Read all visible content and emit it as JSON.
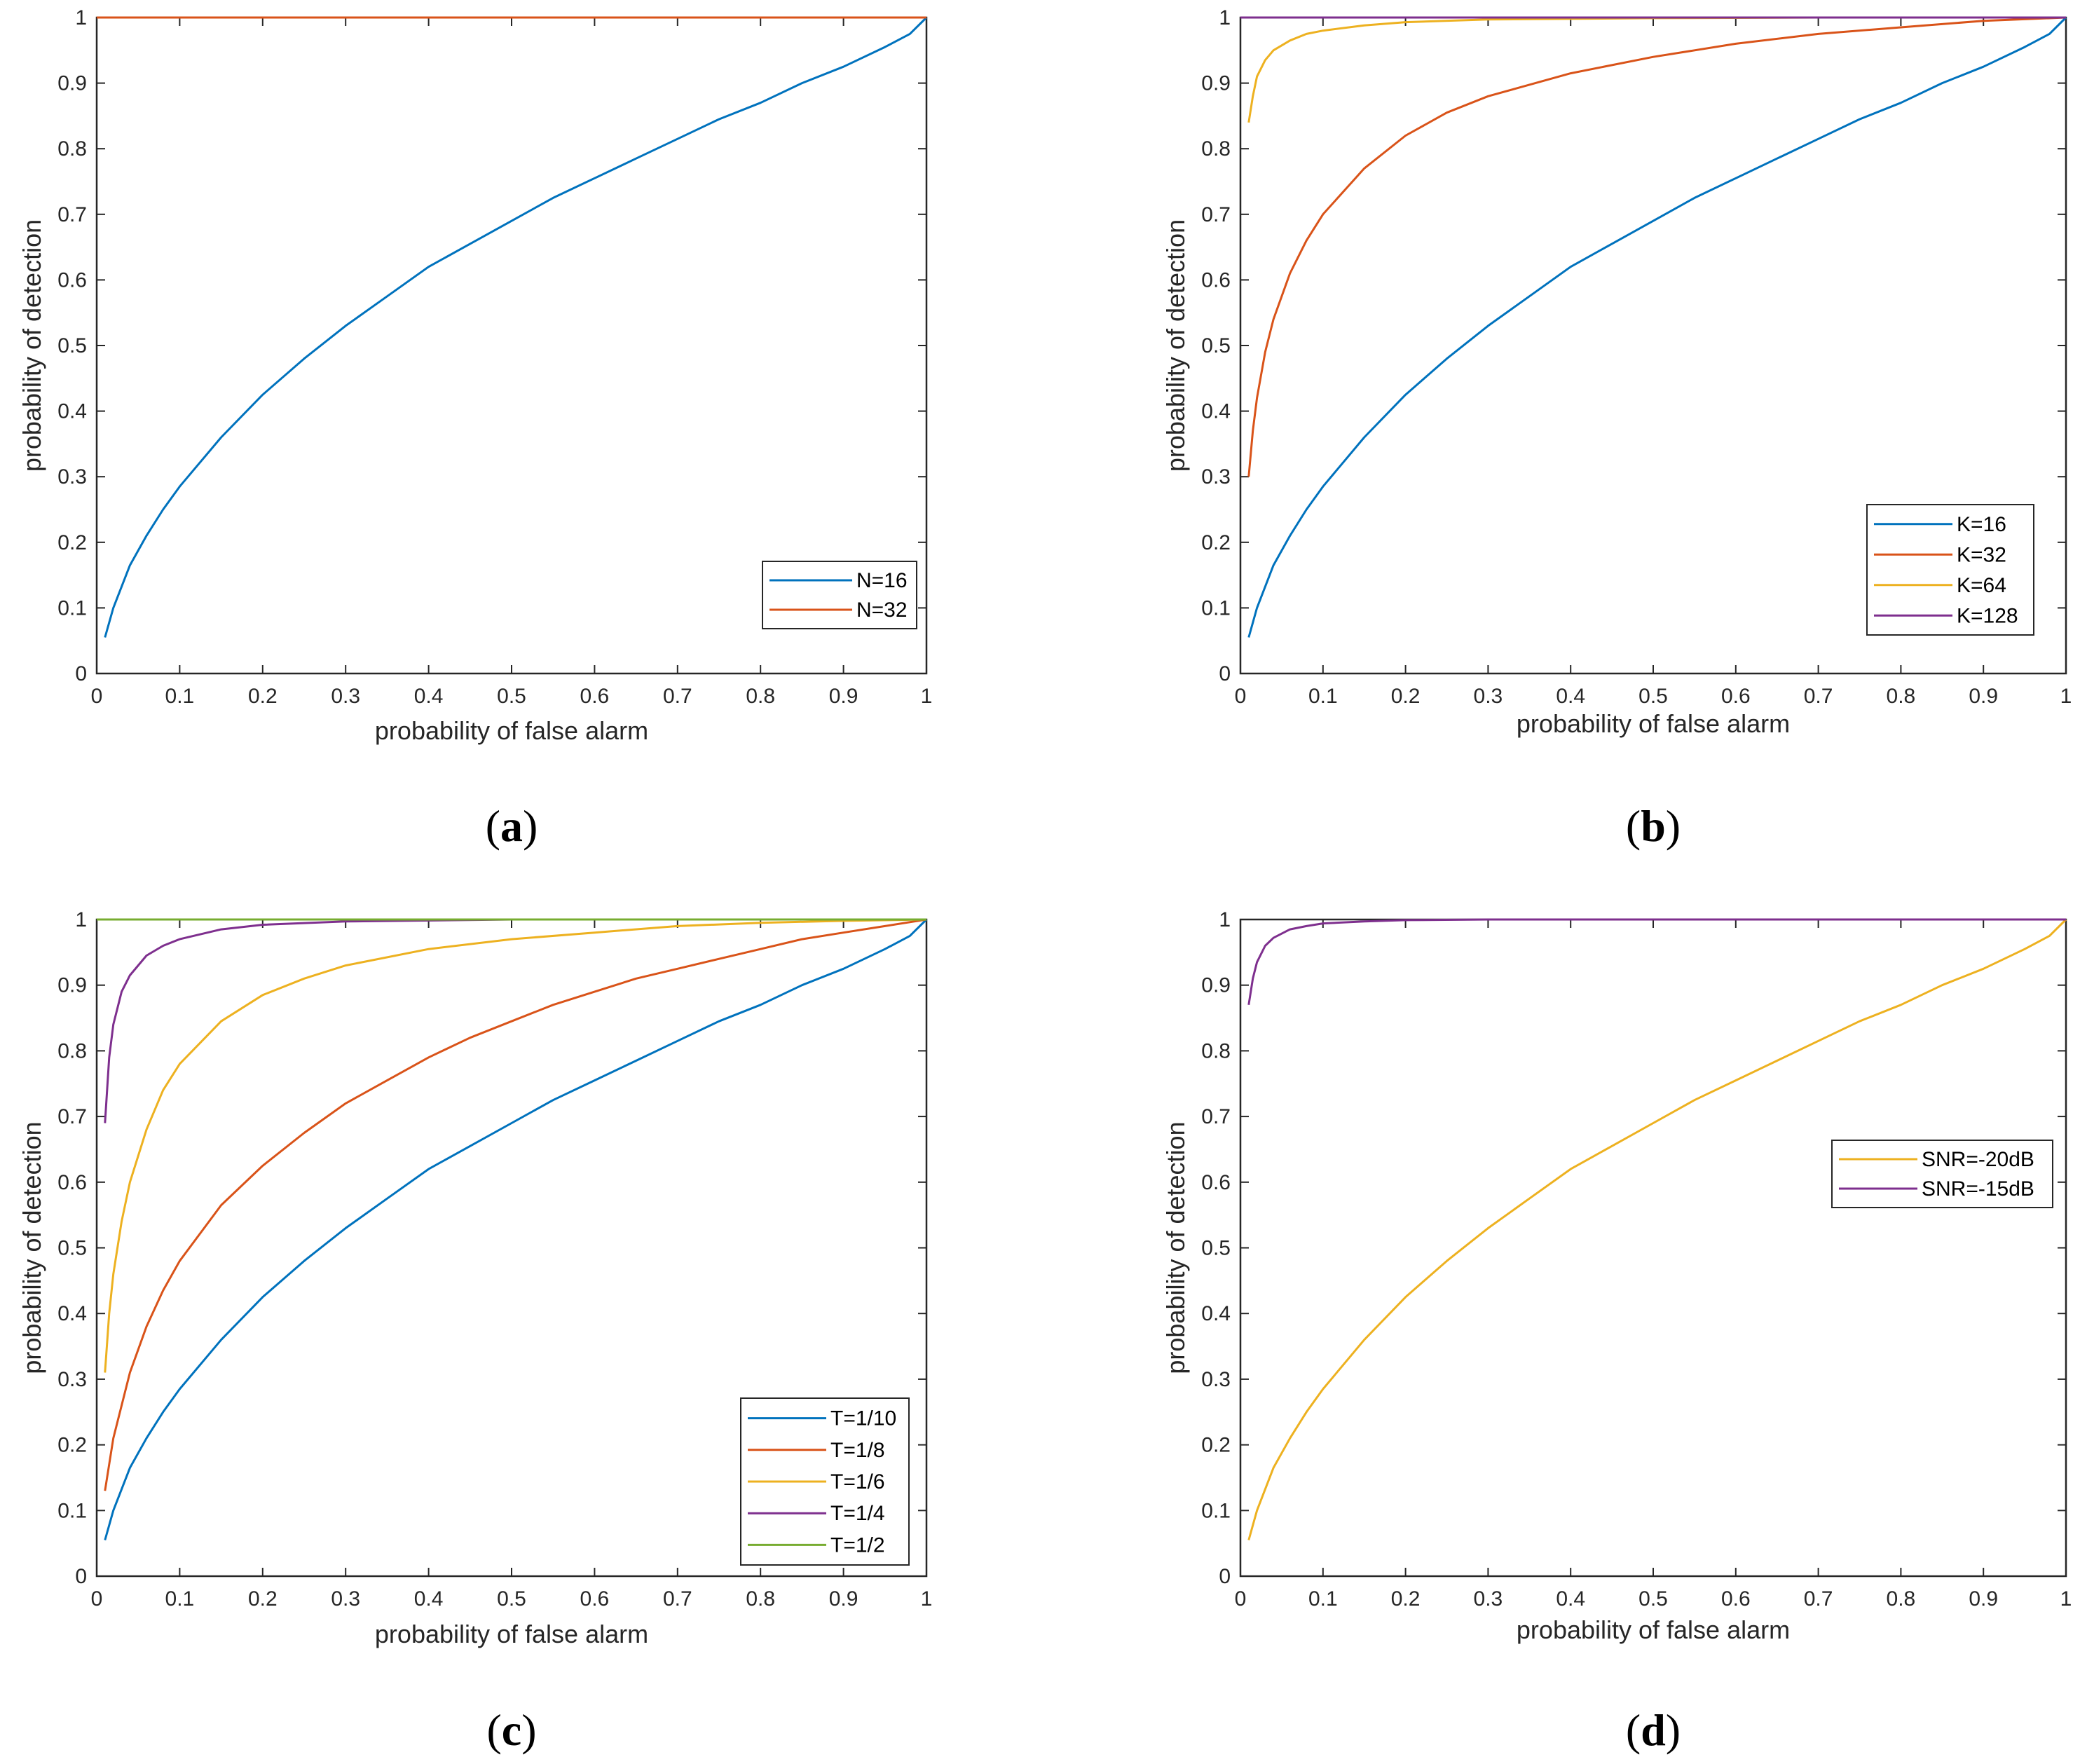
{
  "chart_data": [
    {
      "type": "line",
      "caption": "a",
      "xlabel": "probability of false alarm",
      "ylabel": "probability of detection",
      "xlim": [
        0,
        1
      ],
      "ylim": [
        0,
        1
      ],
      "xticks": [
        "0",
        "0.1",
        "0.2",
        "0.3",
        "0.4",
        "0.5",
        "0.6",
        "0.7",
        "0.8",
        "0.9",
        "1"
      ],
      "yticks": [
        "0",
        "0.1",
        "0.2",
        "0.3",
        "0.4",
        "0.5",
        "0.6",
        "0.7",
        "0.8",
        "0.9",
        "1"
      ],
      "legend_position": "bottom-right",
      "series": [
        {
          "name": "N=16",
          "color": "#0072BD",
          "x": [
            0.01,
            0.02,
            0.04,
            0.06,
            0.08,
            0.1,
            0.15,
            0.2,
            0.25,
            0.3,
            0.35,
            0.4,
            0.45,
            0.5,
            0.55,
            0.6,
            0.65,
            0.7,
            0.75,
            0.8,
            0.85,
            0.9,
            0.95,
            0.98,
            1
          ],
          "y": [
            0.055,
            0.1,
            0.165,
            0.21,
            0.25,
            0.285,
            0.36,
            0.425,
            0.48,
            0.53,
            0.575,
            0.62,
            0.655,
            0.69,
            0.725,
            0.755,
            0.785,
            0.815,
            0.845,
            0.87,
            0.9,
            0.925,
            0.955,
            0.975,
            1
          ]
        },
        {
          "name": "N=32",
          "color": "#D95319",
          "x": [
            0,
            0.01,
            0.5,
            1
          ],
          "y": [
            1,
            1,
            1,
            1
          ]
        }
      ]
    },
    {
      "type": "line",
      "caption": "b",
      "xlabel": "probability of false alarm",
      "ylabel": "probability of detection",
      "xlim": [
        0,
        1
      ],
      "ylim": [
        0,
        1
      ],
      "xticks": [
        "0",
        "0.1",
        "0.2",
        "0.3",
        "0.4",
        "0.5",
        "0.6",
        "0.7",
        "0.8",
        "0.9",
        "1"
      ],
      "yticks": [
        "0",
        "0.1",
        "0.2",
        "0.3",
        "0.4",
        "0.5",
        "0.6",
        "0.7",
        "0.8",
        "0.9",
        "1"
      ],
      "legend_position": "bottom-right",
      "series": [
        {
          "name": "K=16",
          "color": "#0072BD",
          "x": [
            0.01,
            0.02,
            0.04,
            0.06,
            0.08,
            0.1,
            0.15,
            0.2,
            0.25,
            0.3,
            0.35,
            0.4,
            0.45,
            0.5,
            0.55,
            0.6,
            0.65,
            0.7,
            0.75,
            0.8,
            0.85,
            0.9,
            0.95,
            0.98,
            1
          ],
          "y": [
            0.055,
            0.1,
            0.165,
            0.21,
            0.25,
            0.285,
            0.36,
            0.425,
            0.48,
            0.53,
            0.575,
            0.62,
            0.655,
            0.69,
            0.725,
            0.755,
            0.785,
            0.815,
            0.845,
            0.87,
            0.9,
            0.925,
            0.955,
            0.975,
            1
          ]
        },
        {
          "name": "K=32",
          "color": "#D95319",
          "x": [
            0.01,
            0.015,
            0.02,
            0.03,
            0.04,
            0.06,
            0.08,
            0.1,
            0.15,
            0.2,
            0.25,
            0.3,
            0.4,
            0.5,
            0.6,
            0.7,
            0.8,
            0.9,
            1
          ],
          "y": [
            0.3,
            0.37,
            0.42,
            0.49,
            0.54,
            0.61,
            0.66,
            0.7,
            0.77,
            0.82,
            0.855,
            0.88,
            0.915,
            0.94,
            0.96,
            0.975,
            0.985,
            0.995,
            1
          ]
        },
        {
          "name": "K=64",
          "color": "#EDB120",
          "x": [
            0.01,
            0.015,
            0.02,
            0.03,
            0.04,
            0.06,
            0.08,
            0.1,
            0.15,
            0.2,
            0.3,
            0.5,
            0.7,
            1
          ],
          "y": [
            0.84,
            0.88,
            0.91,
            0.935,
            0.95,
            0.965,
            0.975,
            0.98,
            0.988,
            0.993,
            0.997,
            0.999,
            1,
            1
          ]
        },
        {
          "name": "K=128",
          "color": "#7E2F8E",
          "x": [
            0,
            0.01,
            0.5,
            1
          ],
          "y": [
            1,
            1,
            1,
            1
          ]
        }
      ]
    },
    {
      "type": "line",
      "caption": "c",
      "xlabel": "probability of false alarm",
      "ylabel": "probability of detection",
      "xlim": [
        0,
        1
      ],
      "ylim": [
        0,
        1
      ],
      "xticks": [
        "0",
        "0.1",
        "0.2",
        "0.3",
        "0.4",
        "0.5",
        "0.6",
        "0.7",
        "0.8",
        "0.9",
        "1"
      ],
      "yticks": [
        "0",
        "0.1",
        "0.2",
        "0.3",
        "0.4",
        "0.5",
        "0.6",
        "0.7",
        "0.8",
        "0.9",
        "1"
      ],
      "legend_position": "bottom-right",
      "series": [
        {
          "name": "T=1/10",
          "color": "#0072BD",
          "x": [
            0.01,
            0.02,
            0.04,
            0.06,
            0.08,
            0.1,
            0.15,
            0.2,
            0.25,
            0.3,
            0.35,
            0.4,
            0.45,
            0.5,
            0.55,
            0.6,
            0.65,
            0.7,
            0.75,
            0.8,
            0.85,
            0.9,
            0.95,
            0.98,
            1
          ],
          "y": [
            0.055,
            0.1,
            0.165,
            0.21,
            0.25,
            0.285,
            0.36,
            0.425,
            0.48,
            0.53,
            0.575,
            0.62,
            0.655,
            0.69,
            0.725,
            0.755,
            0.785,
            0.815,
            0.845,
            0.87,
            0.9,
            0.925,
            0.955,
            0.975,
            1
          ]
        },
        {
          "name": "T=1/8",
          "color": "#D95319",
          "x": [
            0.01,
            0.02,
            0.04,
            0.06,
            0.08,
            0.1,
            0.15,
            0.2,
            0.25,
            0.3,
            0.35,
            0.4,
            0.45,
            0.5,
            0.55,
            0.6,
            0.65,
            0.7,
            0.75,
            0.8,
            0.85,
            0.9,
            0.95,
            1
          ],
          "y": [
            0.13,
            0.21,
            0.31,
            0.38,
            0.435,
            0.48,
            0.565,
            0.625,
            0.675,
            0.72,
            0.755,
            0.79,
            0.82,
            0.845,
            0.87,
            0.89,
            0.91,
            0.925,
            0.94,
            0.955,
            0.97,
            0.98,
            0.99,
            1
          ]
        },
        {
          "name": "T=1/6",
          "color": "#EDB120",
          "x": [
            0.01,
            0.015,
            0.02,
            0.03,
            0.04,
            0.06,
            0.08,
            0.1,
            0.15,
            0.2,
            0.25,
            0.3,
            0.4,
            0.5,
            0.6,
            0.7,
            0.8,
            0.9,
            1
          ],
          "y": [
            0.31,
            0.4,
            0.46,
            0.54,
            0.6,
            0.68,
            0.74,
            0.78,
            0.845,
            0.885,
            0.91,
            0.93,
            0.955,
            0.97,
            0.98,
            0.99,
            0.995,
            0.998,
            1
          ]
        },
        {
          "name": "T=1/4",
          "color": "#7E2F8E",
          "x": [
            0.01,
            0.015,
            0.02,
            0.03,
            0.04,
            0.06,
            0.08,
            0.1,
            0.15,
            0.2,
            0.3,
            0.5,
            1
          ],
          "y": [
            0.69,
            0.79,
            0.84,
            0.89,
            0.915,
            0.945,
            0.96,
            0.97,
            0.985,
            0.992,
            0.997,
            1,
            1
          ]
        },
        {
          "name": "T=1/2",
          "color": "#77AC30",
          "x": [
            0,
            0.01,
            0.5,
            1
          ],
          "y": [
            1,
            1,
            1,
            1
          ]
        }
      ]
    },
    {
      "type": "line",
      "caption": "d",
      "xlabel": "probability of false alarm",
      "ylabel": "probability of detection",
      "xlim": [
        0,
        1
      ],
      "ylim": [
        0,
        1
      ],
      "xticks": [
        "0",
        "0.1",
        "0.2",
        "0.3",
        "0.4",
        "0.5",
        "0.6",
        "0.7",
        "0.8",
        "0.9",
        "1"
      ],
      "yticks": [
        "0",
        "0.1",
        "0.2",
        "0.3",
        "0.4",
        "0.5",
        "0.6",
        "0.7",
        "0.8",
        "0.9",
        "1"
      ],
      "legend_position": "right",
      "series": [
        {
          "name": "SNR=-20dB",
          "color": "#EDB120",
          "x": [
            0.01,
            0.02,
            0.04,
            0.06,
            0.08,
            0.1,
            0.15,
            0.2,
            0.25,
            0.3,
            0.35,
            0.4,
            0.45,
            0.5,
            0.55,
            0.6,
            0.65,
            0.7,
            0.75,
            0.8,
            0.85,
            0.9,
            0.95,
            0.98,
            1
          ],
          "y": [
            0.055,
            0.1,
            0.165,
            0.21,
            0.25,
            0.285,
            0.36,
            0.425,
            0.48,
            0.53,
            0.575,
            0.62,
            0.655,
            0.69,
            0.725,
            0.755,
            0.785,
            0.815,
            0.845,
            0.87,
            0.9,
            0.925,
            0.955,
            0.975,
            1
          ]
        },
        {
          "name": "SNR=-15dB",
          "color": "#7E2F8E",
          "x": [
            0.01,
            0.015,
            0.02,
            0.03,
            0.04,
            0.06,
            0.08,
            0.1,
            0.15,
            0.2,
            0.3,
            0.5,
            1
          ],
          "y": [
            0.87,
            0.91,
            0.935,
            0.96,
            0.972,
            0.985,
            0.99,
            0.994,
            0.997,
            0.999,
            1,
            1,
            1
          ]
        }
      ]
    }
  ]
}
